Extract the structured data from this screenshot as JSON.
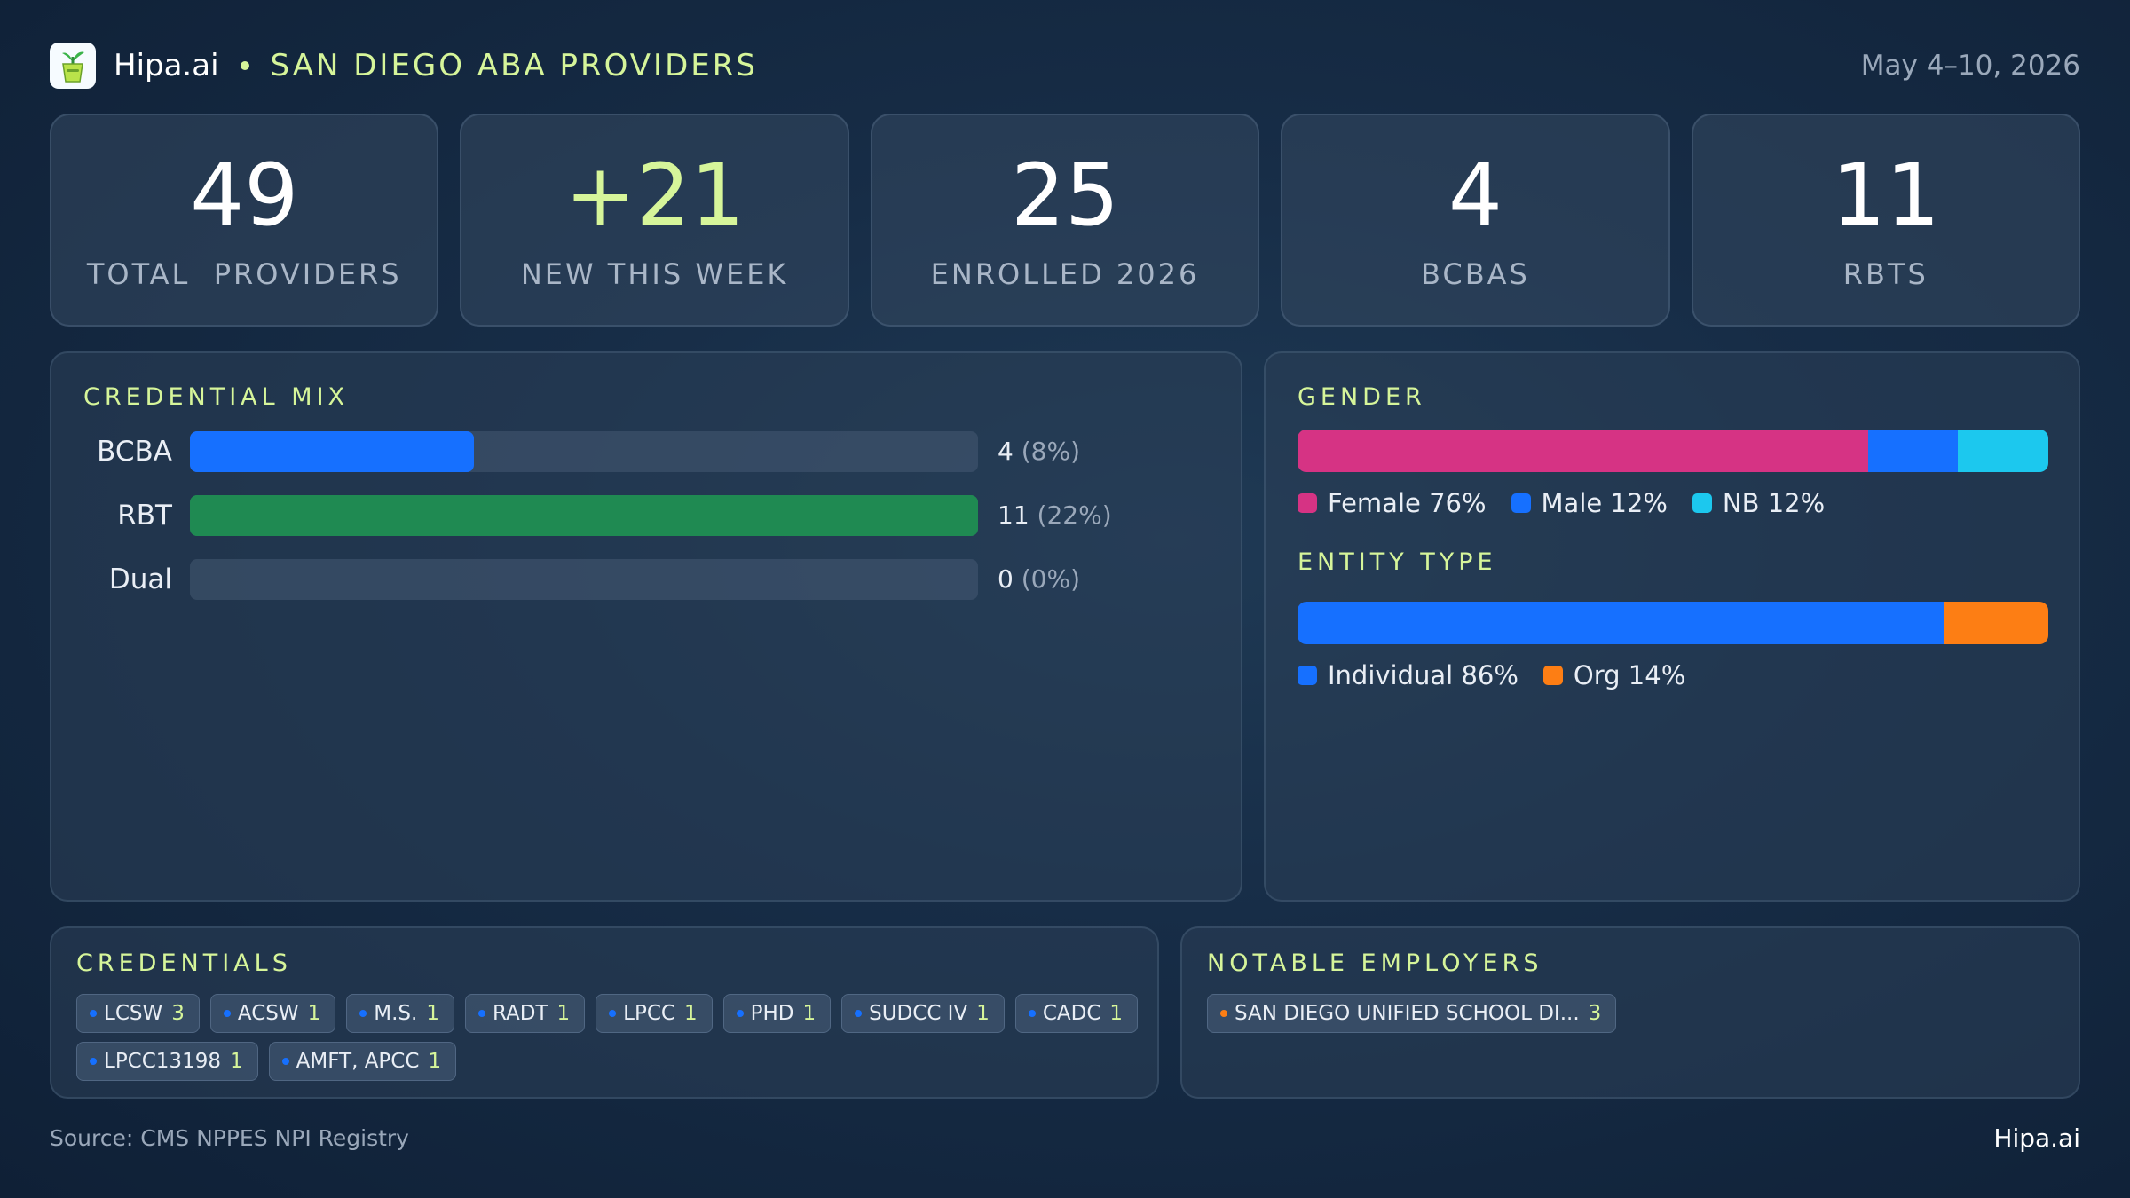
{
  "header": {
    "brand": "Hipa.ai",
    "title": "SAN DIEGO ABA PROVIDERS",
    "date": "May 4–10, 2026",
    "logo_icon": "plant-cup-icon"
  },
  "stats": [
    {
      "value": "49",
      "label": "TOTAL  PROVIDERS"
    },
    {
      "value": "+21",
      "label": "NEW THIS WEEK"
    },
    {
      "value": "25",
      "label": "ENROLLED 2026"
    },
    {
      "value": "4",
      "label": "BCBAS"
    },
    {
      "value": "11",
      "label": "RBTS"
    }
  ],
  "credential_mix": {
    "title": "CREDENTIAL MIX",
    "rows": [
      {
        "label": "BCBA",
        "count": "4",
        "pct": "(8%)",
        "fill": 0.36,
        "color": "#1670ff"
      },
      {
        "label": "RBT",
        "count": "11",
        "pct": "(22%)",
        "fill": 1.0,
        "color": "#1f8a52"
      },
      {
        "label": "Dual",
        "count": "0",
        "pct": "(0%)",
        "fill": 0.0,
        "color": "#1670ff"
      }
    ]
  },
  "gender": {
    "title": "GENDER",
    "segments": [
      {
        "label": "Female 76%",
        "share": 76,
        "color": "#d63384"
      },
      {
        "label": "Male 12%",
        "share": 12,
        "color": "#1670ff"
      },
      {
        "label": "NB 12%",
        "share": 12,
        "color": "#1cc8ee"
      }
    ]
  },
  "entity_type": {
    "title": "ENTITY TYPE",
    "segments": [
      {
        "label": "Individual 86%",
        "share": 86,
        "color": "#1670ff"
      },
      {
        "label": "Org 14%",
        "share": 14,
        "color": "#fd7e14"
      }
    ]
  },
  "credentials": {
    "title": "CREDENTIALS",
    "dot_color": "#1670ff",
    "chips": [
      {
        "name": "LCSW",
        "count": "3"
      },
      {
        "name": "ACSW",
        "count": "1"
      },
      {
        "name": "M.S.",
        "count": "1"
      },
      {
        "name": "RADT",
        "count": "1"
      },
      {
        "name": "LPCC",
        "count": "1"
      },
      {
        "name": "PHD",
        "count": "1"
      },
      {
        "name": "SUDCC IV",
        "count": "1"
      },
      {
        "name": "CADC",
        "count": "1"
      },
      {
        "name": "LPCC13198",
        "count": "1"
      },
      {
        "name": "AMFT, APCC",
        "count": "1"
      }
    ]
  },
  "employers": {
    "title": "NOTABLE EMPLOYERS",
    "dot_color": "#fd7e14",
    "chips": [
      {
        "name": "SAN DIEGO UNIFIED SCHOOL DI...",
        "count": "3"
      }
    ]
  },
  "footer": {
    "source": "Source: CMS NPPES NPI Registry",
    "brand": "Hipa.ai"
  }
}
